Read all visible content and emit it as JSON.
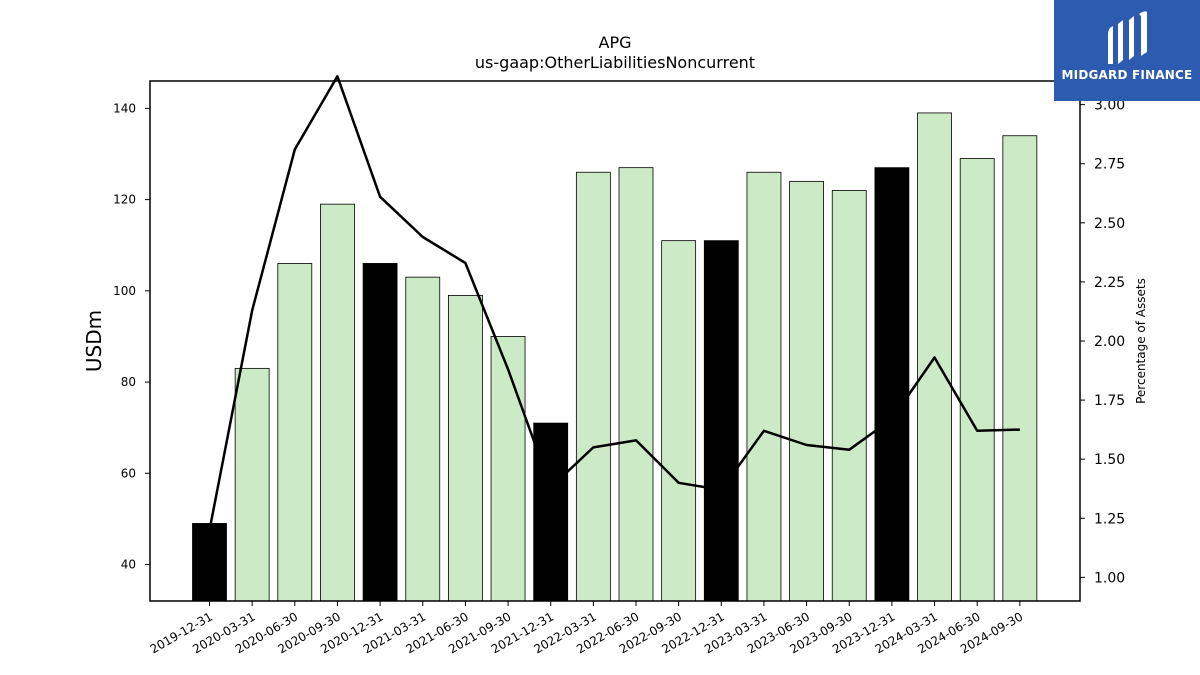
{
  "logo": {
    "brand": "MIDGARD FINANCE",
    "icon": "midgard-logo-icon",
    "color": "#2d5bb0"
  },
  "chart_data": {
    "type": "bar",
    "title": "APG",
    "subtitle": "us-gaap:OtherLiabilitiesNoncurrent",
    "ylabel": "USDm",
    "y2label": "Percentage of Assets",
    "ylim": [
      32,
      146
    ],
    "y2lim": [
      0.9,
      3.1
    ],
    "yticks": [
      40,
      60,
      80,
      100,
      120,
      140
    ],
    "y2ticks": [
      "1.00",
      "1.25",
      "1.50",
      "1.75",
      "2.00",
      "2.25",
      "2.50",
      "2.75",
      "3.00"
    ],
    "categories": [
      "2019-12-31",
      "2020-03-31",
      "2020-06-30",
      "2020-09-30",
      "2020-12-31",
      "2021-03-31",
      "2021-06-30",
      "2021-09-30",
      "2021-12-31",
      "2022-03-31",
      "2022-06-30",
      "2022-09-30",
      "2022-12-31",
      "2023-03-31",
      "2023-06-30",
      "2023-09-30",
      "2023-12-31",
      "2024-03-31",
      "2024-06-30",
      "2024-09-30"
    ],
    "series": [
      {
        "type": "bar",
        "values": [
          49,
          83,
          106,
          119,
          106,
          103,
          99,
          90,
          71,
          126,
          127,
          111,
          111,
          126,
          124,
          122,
          127,
          139,
          129,
          134
        ],
        "highlight": [
          true,
          false,
          false,
          false,
          true,
          false,
          false,
          false,
          true,
          false,
          false,
          false,
          true,
          false,
          false,
          false,
          true,
          false,
          false,
          false
        ],
        "color": "#cdeac7",
        "highlight_color": "#000000"
      },
      {
        "type": "line",
        "axis": "right",
        "values": [
          1.2,
          2.13,
          2.81,
          3.12,
          2.61,
          2.44,
          2.33,
          1.88,
          1.38,
          1.55,
          1.58,
          1.4,
          1.37,
          1.62,
          1.56,
          1.54,
          1.67,
          1.93,
          1.62,
          1.625
        ],
        "color": "#000000"
      }
    ],
    "grid": false,
    "legend": "none"
  }
}
